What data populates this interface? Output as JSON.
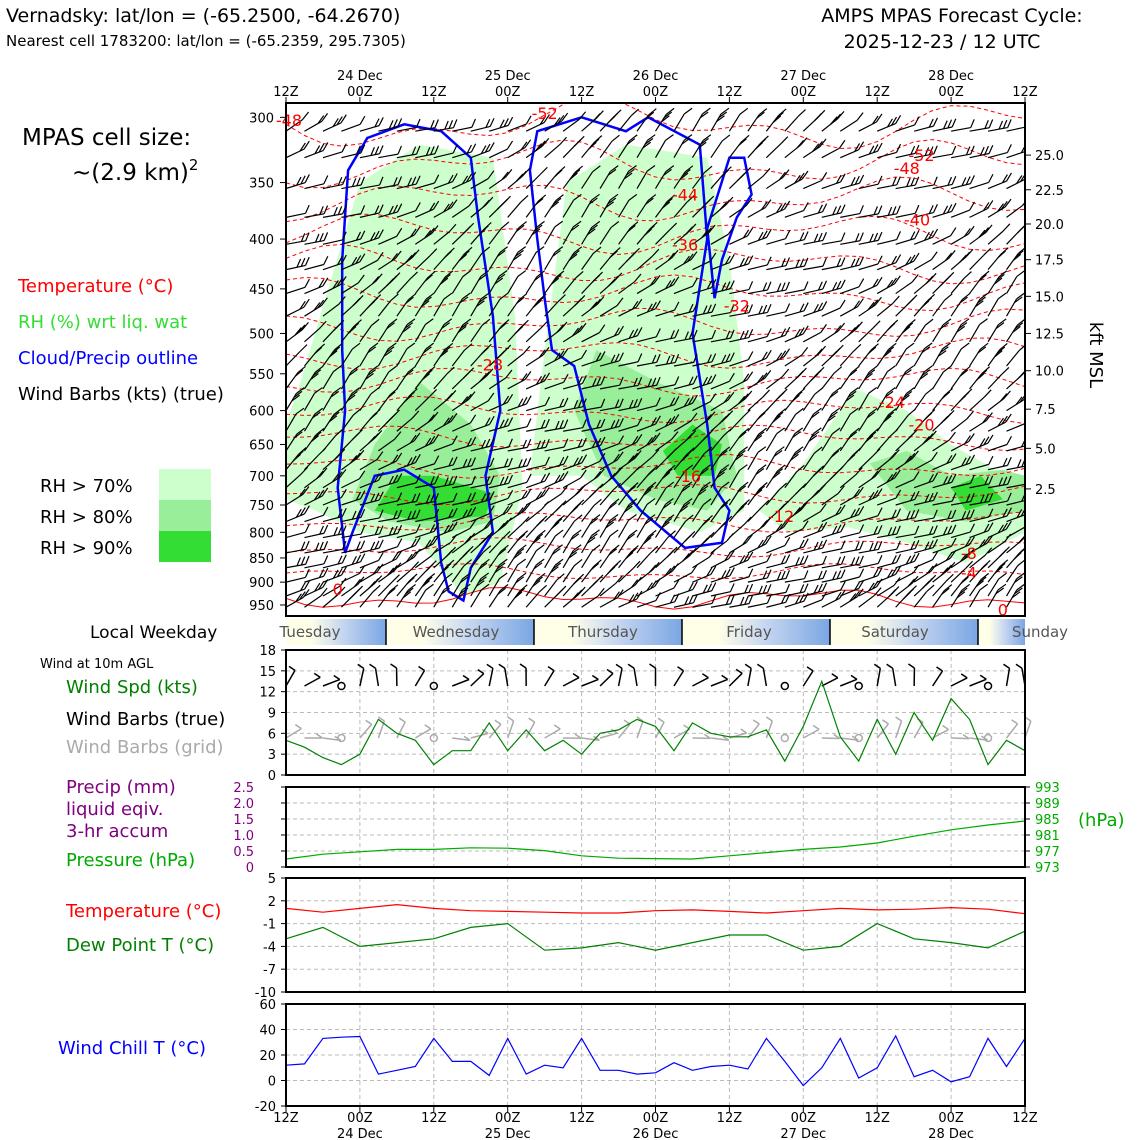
{
  "header": {
    "station": "Vernadsky: lat/lon = (-65.2500, -64.2670)",
    "nearest": "Nearest cell 1783200: lat/lon = (-65.2359, 295.7305)",
    "cycle_title": "AMPS MPAS Forecast Cycle:",
    "cycle_time": "2025-12-23 / 12 UTC"
  },
  "legend": {
    "cell_size_1": "MPAS cell size:",
    "cell_size_2": "~(2.9 km)",
    "cell_size_exp": "2",
    "temperature": "Temperature (°C)",
    "rh": "RH (%) wrt liq. wat",
    "cloud": "Cloud/Precip outline",
    "barbs": "Wind Barbs (kts) (true)",
    "rh_levels": [
      "RH > 70%",
      "RH > 80%",
      "RH > 90%"
    ],
    "rh_colors": [
      "#ccffcc",
      "#99ee99",
      "#33dd33"
    ],
    "local_weekday": "Local Weekday",
    "wind10": "Wind at 10m AGL",
    "wind_spd": "Wind Spd (kts)",
    "wind_barbs_true": "Wind Barbs (true)",
    "wind_barbs_grid": "Wind Barbs (grid)",
    "precip1": "Precip (mm)",
    "precip2": "liquid eqiv.",
    "precip3": "3-hr accum",
    "pressure": "Pressure (hPa)",
    "pressure_unit": "(hPa)",
    "temp2": "Temperature (°C)",
    "dew": "Dew Point T (°C)",
    "windchill": "Wind Chill T (°C)",
    "kft": "kft MSL"
  },
  "colors": {
    "temp": "#ff0000",
    "rh": "#33dd33",
    "cloud": "#0000ff",
    "black": "#000000",
    "grey": "#aaaaaa",
    "green": "#008000",
    "purple": "#800080",
    "pressure": "#00aa00",
    "windchill": "#0000ff"
  },
  "time_axis": {
    "tick_labels": [
      "12Z",
      "00Z",
      "12Z",
      "00Z",
      "12Z",
      "00Z",
      "12Z",
      "00Z",
      "12Z",
      "00Z",
      "12Z"
    ],
    "day_labels": [
      "24 Dec",
      "25 Dec",
      "26 Dec",
      "27 Dec",
      "28 Dec"
    ],
    "weekdays": [
      "Tuesday",
      "Wednesday",
      "Thursday",
      "Friday",
      "Saturday",
      "Sunday"
    ]
  },
  "chart_data": [
    {
      "type": "contour",
      "name": "time-pressure cross section",
      "y_ticks": [
        300,
        350,
        400,
        450,
        500,
        550,
        600,
        650,
        700,
        750,
        800,
        850,
        900,
        950
      ],
      "ylim": [
        975,
        290
      ],
      "kft_ticks": [
        {
          "p": 328,
          "label": "25.0"
        },
        {
          "p": 356,
          "label": "22.5"
        },
        {
          "p": 386,
          "label": "20.0"
        },
        {
          "p": 420,
          "label": "17.5"
        },
        {
          "p": 458,
          "label": "15.0"
        },
        {
          "p": 500,
          "label": "12.5"
        },
        {
          "p": 546,
          "label": "10.0"
        },
        {
          "p": 598,
          "label": "7.5"
        },
        {
          "p": 656,
          "label": "5.0"
        },
        {
          "p": 722,
          "label": "2.5"
        }
      ],
      "temp_labels": [
        {
          "t": 0.02,
          "p": 302,
          "label": "-48"
        },
        {
          "t": 1.75,
          "p": 297,
          "label": "-52"
        },
        {
          "t": 4.3,
          "p": 328,
          "label": "-52"
        },
        {
          "t": 2.7,
          "p": 360,
          "label": "-44"
        },
        {
          "t": 4.2,
          "p": 338,
          "label": "-48"
        },
        {
          "t": 4.27,
          "p": 382,
          "label": "-40"
        },
        {
          "t": 2.7,
          "p": 405,
          "label": "-36"
        },
        {
          "t": 3.05,
          "p": 468,
          "label": "-32"
        },
        {
          "t": 1.38,
          "p": 538,
          "label": "-28"
        },
        {
          "t": 4.1,
          "p": 588,
          "label": "-24"
        },
        {
          "t": 4.3,
          "p": 620,
          "label": "-20"
        },
        {
          "t": 2.72,
          "p": 700,
          "label": "-16"
        },
        {
          "t": 3.35,
          "p": 770,
          "label": "-12"
        },
        {
          "t": 4.62,
          "p": 840,
          "label": "-8"
        },
        {
          "t": 4.62,
          "p": 880,
          "label": "-4"
        },
        {
          "t": 0.35,
          "p": 915,
          "label": "0"
        },
        {
          "t": 4.85,
          "p": 960,
          "label": "0"
        }
      ]
    },
    {
      "type": "line",
      "name": "wind speed 10m",
      "ylim": [
        0,
        18
      ],
      "y_ticks": [
        0,
        3,
        6,
        9,
        12,
        15,
        18
      ],
      "x": [
        0,
        0.125,
        0.25,
        0.375,
        0.5,
        0.625,
        0.75,
        0.875,
        1,
        1.125,
        1.25,
        1.375,
        1.5,
        1.625,
        1.75,
        1.875,
        2,
        2.125,
        2.25,
        2.375,
        2.5,
        2.625,
        2.75,
        2.875,
        3,
        3.125,
        3.25,
        3.375,
        3.5,
        3.625,
        3.75,
        3.875,
        4,
        4.125,
        4.25,
        4.375,
        4.5,
        4.625,
        4.75,
        4.875,
        5
      ],
      "values": [
        5,
        4,
        2.5,
        1.5,
        3,
        8,
        6,
        5,
        1.5,
        3.5,
        3.5,
        7.5,
        3.5,
        6.5,
        3.5,
        5,
        3,
        6,
        6.5,
        8,
        7,
        3.5,
        7.5,
        6,
        5.5,
        5.5,
        6.5,
        2,
        7,
        13.5,
        5.5,
        2,
        8,
        3,
        9,
        5,
        11,
        8,
        1.5,
        5,
        3.5
      ]
    },
    {
      "type": "line",
      "name": "pressure",
      "ylim": [
        973,
        993
      ],
      "y_ticks_right": [
        973,
        977,
        981,
        985,
        989,
        993
      ],
      "precip_ticks": [
        "0",
        "0.5",
        "1.0",
        "1.5",
        "2.0",
        "2.5"
      ],
      "precip_values": [],
      "x": [
        0,
        0.25,
        0.5,
        0.75,
        1,
        1.25,
        1.5,
        1.75,
        2,
        2.25,
        2.5,
        2.75,
        3,
        3.25,
        3.5,
        3.75,
        4,
        4.25,
        4.5,
        4.75,
        5
      ],
      "values": [
        975,
        976.2,
        976.8,
        977.4,
        977.4,
        977.8,
        977.7,
        977.1,
        975.8,
        975.2,
        975.1,
        975.0,
        975.8,
        976.6,
        977.4,
        978.0,
        979.0,
        980.7,
        982.3,
        983.5,
        984.5
      ]
    },
    {
      "type": "line",
      "name": "temperature and dew point",
      "ylim": [
        -10,
        5
      ],
      "y_ticks": [
        -10,
        -7,
        -4,
        -1,
        2,
        5
      ],
      "x": [
        0,
        0.25,
        0.5,
        0.75,
        1,
        1.25,
        1.5,
        1.75,
        2,
        2.25,
        2.5,
        2.75,
        3,
        3.25,
        3.5,
        3.75,
        4,
        4.25,
        4.5,
        4.75,
        5
      ],
      "series": [
        {
          "name": "Temperature",
          "values": [
            1,
            0.5,
            1,
            1.5,
            1,
            0.7,
            0.6,
            0.5,
            0.4,
            0.4,
            0.7,
            0.8,
            0.6,
            0.4,
            0.7,
            1,
            0.8,
            0.9,
            1.1,
            0.9,
            0.3
          ]
        },
        {
          "name": "Dew Point",
          "values": [
            -3,
            -1.5,
            -4,
            -3.5,
            -3,
            -1.5,
            -1,
            -4.5,
            -4.2,
            -3.5,
            -4.5,
            -3.5,
            -2.5,
            -2.5,
            -4.5,
            -4,
            -1,
            -3,
            -3.5,
            -4.2,
            -2
          ]
        }
      ]
    },
    {
      "type": "line",
      "name": "wind chill",
      "ylim": [
        -20,
        60
      ],
      "y_ticks": [
        -20,
        0,
        20,
        40,
        60
      ],
      "x": [
        0,
        0.125,
        0.25,
        0.375,
        0.5,
        0.625,
        0.75,
        0.875,
        1,
        1.125,
        1.25,
        1.375,
        1.5,
        1.625,
        1.75,
        1.875,
        2,
        2.125,
        2.25,
        2.375,
        2.5,
        2.625,
        2.75,
        2.875,
        3,
        3.125,
        3.25,
        3.375,
        3.5,
        3.625,
        3.75,
        3.875,
        4,
        4.125,
        4.25,
        4.375,
        4.5,
        4.625,
        4.75,
        4.875,
        5
      ],
      "values": [
        12,
        13,
        33,
        34,
        34.5,
        5,
        8,
        11,
        33,
        15,
        15,
        4,
        33,
        5,
        12,
        10,
        33,
        8,
        8,
        5,
        6,
        14,
        8,
        11,
        12,
        9,
        33,
        15,
        -4,
        10,
        33,
        2,
        10,
        35,
        3,
        8,
        -1,
        3,
        33,
        11,
        33
      ]
    }
  ]
}
